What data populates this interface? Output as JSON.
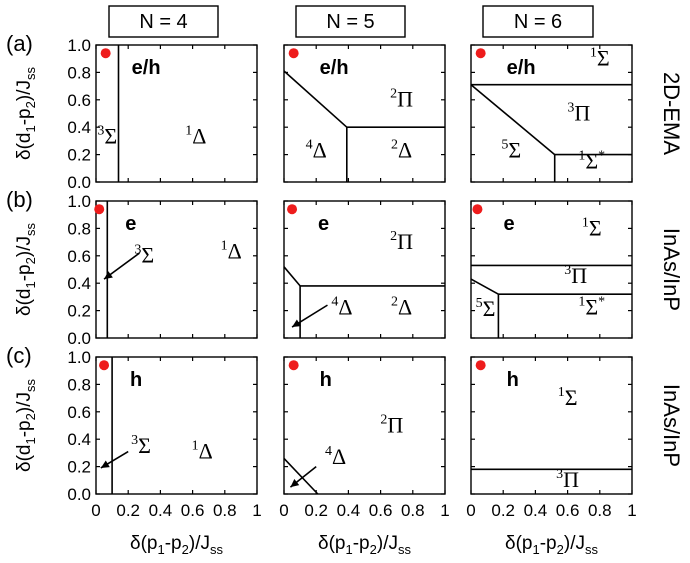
{
  "figure": {
    "row_tags": [
      "(a)",
      "(b)",
      "(c)"
    ],
    "column_headers": [
      "N = 4",
      "N = 5",
      "N = 6"
    ],
    "row_labels": [
      "2D-EMA",
      "InAs/InP",
      "InAs/InP"
    ],
    "xlabel": "δ(p1-p2)/Jss",
    "ylabel": "δ(d1-p2)/Jss",
    "x_ticks": [
      "0",
      "0.2",
      "0.4",
      "0.6",
      "0.8",
      "1"
    ],
    "y_ticks": [
      "0.0",
      "0.2",
      "0.4",
      "0.6",
      "0.8",
      "1.0"
    ],
    "marker_color": "#ee1c1c",
    "line_color": "#000000"
  },
  "chart_data": [
    {
      "type": "phase-diagram",
      "row": 0,
      "col": 0,
      "header_label": "e/h",
      "xlim": [
        0,
        1
      ],
      "ylim": [
        0,
        1
      ],
      "marker": [
        0.06,
        0.94
      ],
      "boundaries": [
        [
          [
            0.14,
            0
          ],
          [
            0.14,
            1
          ]
        ]
      ],
      "regions": [
        {
          "label": "Σ",
          "sup": "3",
          "sup_star": false,
          "x": 0.07,
          "y": 0.28
        },
        {
          "label": "Δ",
          "sup": "1",
          "sup_star": false,
          "x": 0.62,
          "y": 0.28
        }
      ]
    },
    {
      "type": "phase-diagram",
      "row": 0,
      "col": 1,
      "header_label": "e/h",
      "xlim": [
        0,
        1
      ],
      "ylim": [
        0,
        1
      ],
      "marker": [
        0.06,
        0.94
      ],
      "boundaries": [
        [
          [
            0,
            0.81
          ],
          [
            0.39,
            0.4
          ]
        ],
        [
          [
            0.39,
            0
          ],
          [
            0.39,
            0.4
          ]
        ],
        [
          [
            0.39,
            0.4
          ],
          [
            1,
            0.4
          ]
        ]
      ],
      "regions": [
        {
          "label": "Π",
          "sup": "2",
          "sup_star": false,
          "x": 0.73,
          "y": 0.55
        },
        {
          "label": "Δ",
          "sup": "4",
          "sup_star": false,
          "x": 0.2,
          "y": 0.18
        },
        {
          "label": "Δ",
          "sup": "2",
          "sup_star": false,
          "x": 0.73,
          "y": 0.18
        }
      ]
    },
    {
      "type": "phase-diagram",
      "row": 0,
      "col": 2,
      "header_label": "e/h",
      "xlim": [
        0,
        1
      ],
      "ylim": [
        0,
        1
      ],
      "marker": [
        0.06,
        0.94
      ],
      "boundaries": [
        [
          [
            0,
            0.71
          ],
          [
            1,
            0.71
          ]
        ],
        [
          [
            0,
            0.71
          ],
          [
            0.52,
            0.2
          ]
        ],
        [
          [
            0.52,
            0.2
          ],
          [
            1,
            0.2
          ]
        ],
        [
          [
            0.52,
            0
          ],
          [
            0.52,
            0.2
          ]
        ]
      ],
      "regions": [
        {
          "label": "Σ",
          "sup": "1",
          "sup_star": false,
          "x": 0.8,
          "y": 0.85
        },
        {
          "label": "Π",
          "sup": "3",
          "sup_star": false,
          "x": 0.67,
          "y": 0.45
        },
        {
          "label": "Σ",
          "sup": "5",
          "sup_star": false,
          "x": 0.25,
          "y": 0.18
        },
        {
          "label": "Σ",
          "sup": "1",
          "sup_star": true,
          "x": 0.75,
          "y": 0.1
        }
      ]
    },
    {
      "type": "phase-diagram",
      "row": 1,
      "col": 0,
      "header_label": "e",
      "xlim": [
        0,
        1
      ],
      "ylim": [
        0,
        1
      ],
      "marker": [
        0.02,
        0.94
      ],
      "boundaries": [
        [
          [
            0.07,
            0
          ],
          [
            0.07,
            1
          ]
        ]
      ],
      "regions": [
        {
          "label": "Σ",
          "sup": "3",
          "sup_star": false,
          "x": 0.3,
          "y": 0.55
        },
        {
          "label": "Δ",
          "sup": "1",
          "sup_star": false,
          "x": 0.84,
          "y": 0.58
        }
      ],
      "arrows": [
        [
          [
            0.27,
            0.62
          ],
          [
            0.05,
            0.43
          ]
        ]
      ]
    },
    {
      "type": "phase-diagram",
      "row": 1,
      "col": 1,
      "header_label": "e",
      "xlim": [
        0,
        1
      ],
      "ylim": [
        0,
        1
      ],
      "marker": [
        0.05,
        0.94
      ],
      "boundaries": [
        [
          [
            0,
            0.52
          ],
          [
            0.1,
            0.38
          ]
        ],
        [
          [
            0.1,
            0.38
          ],
          [
            1,
            0.38
          ]
        ],
        [
          [
            0.1,
            0
          ],
          [
            0.1,
            0.38
          ]
        ]
      ],
      "regions": [
        {
          "label": "Π",
          "sup": "2",
          "sup_star": false,
          "x": 0.73,
          "y": 0.65
        },
        {
          "label": "Δ",
          "sup": "4",
          "sup_star": false,
          "x": 0.36,
          "y": 0.17
        },
        {
          "label": "Δ",
          "sup": "2",
          "sup_star": false,
          "x": 0.73,
          "y": 0.17
        }
      ],
      "arrows": [
        [
          [
            0.27,
            0.24
          ],
          [
            0.05,
            0.08
          ]
        ]
      ]
    },
    {
      "type": "phase-diagram",
      "row": 1,
      "col": 2,
      "header_label": "e",
      "xlim": [
        0,
        1
      ],
      "ylim": [
        0,
        1
      ],
      "marker": [
        0.04,
        0.94
      ],
      "boundaries": [
        [
          [
            0,
            0.53
          ],
          [
            1,
            0.53
          ]
        ],
        [
          [
            0,
            0.43
          ],
          [
            0.17,
            0.32
          ]
        ],
        [
          [
            0.17,
            0.32
          ],
          [
            1,
            0.32
          ]
        ],
        [
          [
            0.17,
            0
          ],
          [
            0.17,
            0.32
          ]
        ]
      ],
      "regions": [
        {
          "label": "Σ",
          "sup": "1",
          "sup_star": false,
          "x": 0.75,
          "y": 0.75
        },
        {
          "label": "Π",
          "sup": "3",
          "sup_star": false,
          "x": 0.65,
          "y": 0.4
        },
        {
          "label": "Σ",
          "sup": "5",
          "sup_star": false,
          "x": 0.09,
          "y": 0.16
        },
        {
          "label": "Σ",
          "sup": "1",
          "sup_star": true,
          "x": 0.75,
          "y": 0.17
        }
      ]
    },
    {
      "type": "phase-diagram",
      "row": 2,
      "col": 0,
      "header_label": "h",
      "xlim": [
        0,
        1
      ],
      "ylim": [
        0,
        1
      ],
      "marker": [
        0.05,
        0.94
      ],
      "boundaries": [
        [
          [
            0.1,
            0
          ],
          [
            0.1,
            1
          ]
        ]
      ],
      "regions": [
        {
          "label": "Σ",
          "sup": "3",
          "sup_star": false,
          "x": 0.28,
          "y": 0.3
        },
        {
          "label": "Δ",
          "sup": "1",
          "sup_star": false,
          "x": 0.66,
          "y": 0.26
        }
      ],
      "arrows": [
        [
          [
            0.2,
            0.31
          ],
          [
            0.03,
            0.19
          ]
        ]
      ]
    },
    {
      "type": "phase-diagram",
      "row": 2,
      "col": 1,
      "header_label": "h",
      "xlim": [
        0,
        1
      ],
      "ylim": [
        0,
        1
      ],
      "marker": [
        0.06,
        0.94
      ],
      "boundaries": [
        [
          [
            0,
            0.26
          ],
          [
            0.21,
            0
          ]
        ]
      ],
      "regions": [
        {
          "label": "Π",
          "sup": "2",
          "sup_star": false,
          "x": 0.67,
          "y": 0.45
        },
        {
          "label": "Δ",
          "sup": "4",
          "sup_star": false,
          "x": 0.32,
          "y": 0.22
        }
      ],
      "arrows": [
        [
          [
            0.2,
            0.2
          ],
          [
            0.04,
            0.05
          ]
        ]
      ]
    },
    {
      "type": "phase-diagram",
      "row": 2,
      "col": 2,
      "header_label": "h",
      "xlim": [
        0,
        1
      ],
      "ylim": [
        0,
        1
      ],
      "marker": [
        0.06,
        0.94
      ],
      "boundaries": [
        [
          [
            0,
            0.18
          ],
          [
            1,
            0.18
          ]
        ]
      ],
      "regions": [
        {
          "label": "Σ",
          "sup": "1",
          "sup_star": false,
          "x": 0.6,
          "y": 0.65
        },
        {
          "label": "Π",
          "sup": "3",
          "sup_star": false,
          "x": 0.6,
          "y": 0.05
        }
      ]
    }
  ]
}
